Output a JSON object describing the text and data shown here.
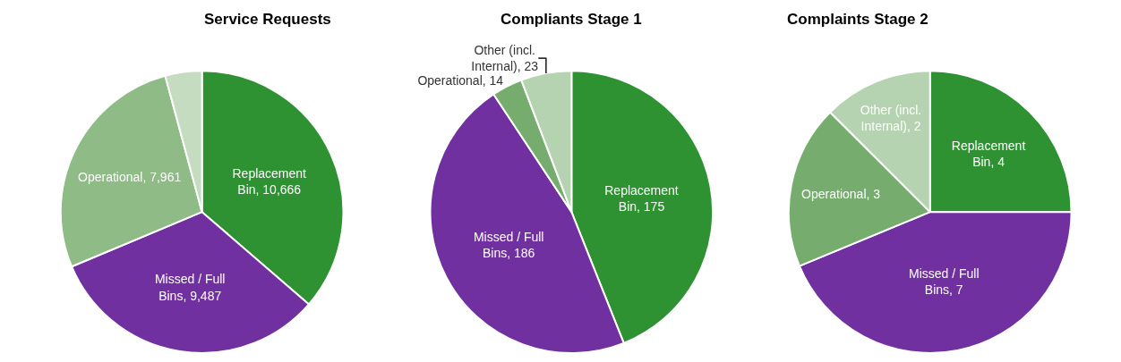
{
  "chart_data": [
    {
      "type": "pie",
      "title": "Service Requests",
      "categories": [
        "Replacement Bin",
        "Missed / Full Bins",
        "Operational",
        null
      ],
      "values": [
        10666,
        9487,
        7961,
        1230
      ],
      "value_labels": [
        "10,666",
        "9,487",
        "7,961",
        null
      ],
      "colors": [
        "#2e9132",
        "#7030a0",
        "#8fbb87",
        "#c5dcc0"
      ],
      "legend": false
    },
    {
      "type": "pie",
      "title": "Compliants Stage 1",
      "categories": [
        "Replacement Bin",
        "Missed / Full Bins",
        "Operational",
        "Other (incl. Internal)"
      ],
      "values": [
        175,
        186,
        14,
        23
      ],
      "value_labels": [
        "175",
        "186",
        "14",
        "23"
      ],
      "colors": [
        "#2e9132",
        "#7030a0",
        "#76ad6f",
        "#b5d3b0"
      ],
      "legend": false
    },
    {
      "type": "pie",
      "title": "Complaints Stage 2",
      "categories": [
        "Replacement Bin",
        "Missed / Full Bins",
        "Operational",
        "Other (incl. Internal)"
      ],
      "values": [
        4,
        7,
        3,
        2
      ],
      "value_labels": [
        "4",
        "7",
        "3",
        "2"
      ],
      "colors": [
        "#2e9132",
        "#7030a0",
        "#76ad6f",
        "#b5d3b0"
      ],
      "legend": false
    }
  ]
}
